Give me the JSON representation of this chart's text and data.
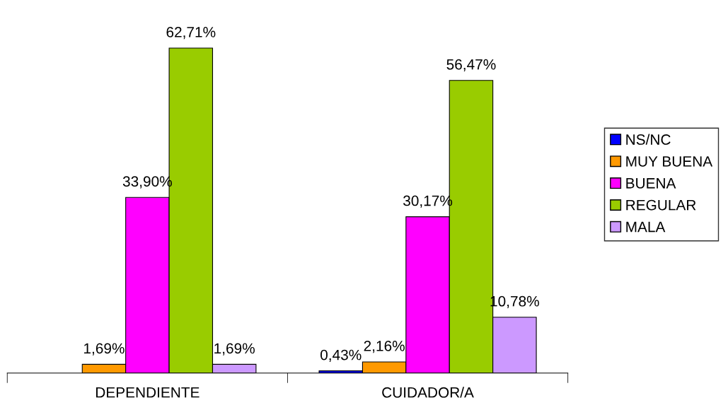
{
  "chart_data": {
    "type": "bar",
    "categories": [
      "DEPENDIENTE",
      "CUIDADOR/A"
    ],
    "series": [
      {
        "name": "NS/NC",
        "color": "#0000ff",
        "values": [
          null,
          0.43
        ],
        "value_labels": [
          null,
          "0,43%"
        ]
      },
      {
        "name": "MUY BUENA",
        "color": "#ff9900",
        "values": [
          1.69,
          2.16
        ],
        "value_labels": [
          "1,69%",
          "2,16%"
        ]
      },
      {
        "name": "BUENA",
        "color": "#ff00ff",
        "values": [
          33.9,
          30.17
        ],
        "value_labels": [
          "33,90%",
          "30,17%"
        ]
      },
      {
        "name": "REGULAR",
        "color": "#99cc00",
        "values": [
          62.71,
          56.47
        ],
        "value_labels": [
          "62,71%",
          "56,47%"
        ]
      },
      {
        "name": "MALA",
        "color": "#cc99ff",
        "values": [
          1.69,
          10.78
        ],
        "value_labels": [
          "1,69%",
          "10,78%"
        ]
      }
    ],
    "legend": "right",
    "grid": false
  }
}
